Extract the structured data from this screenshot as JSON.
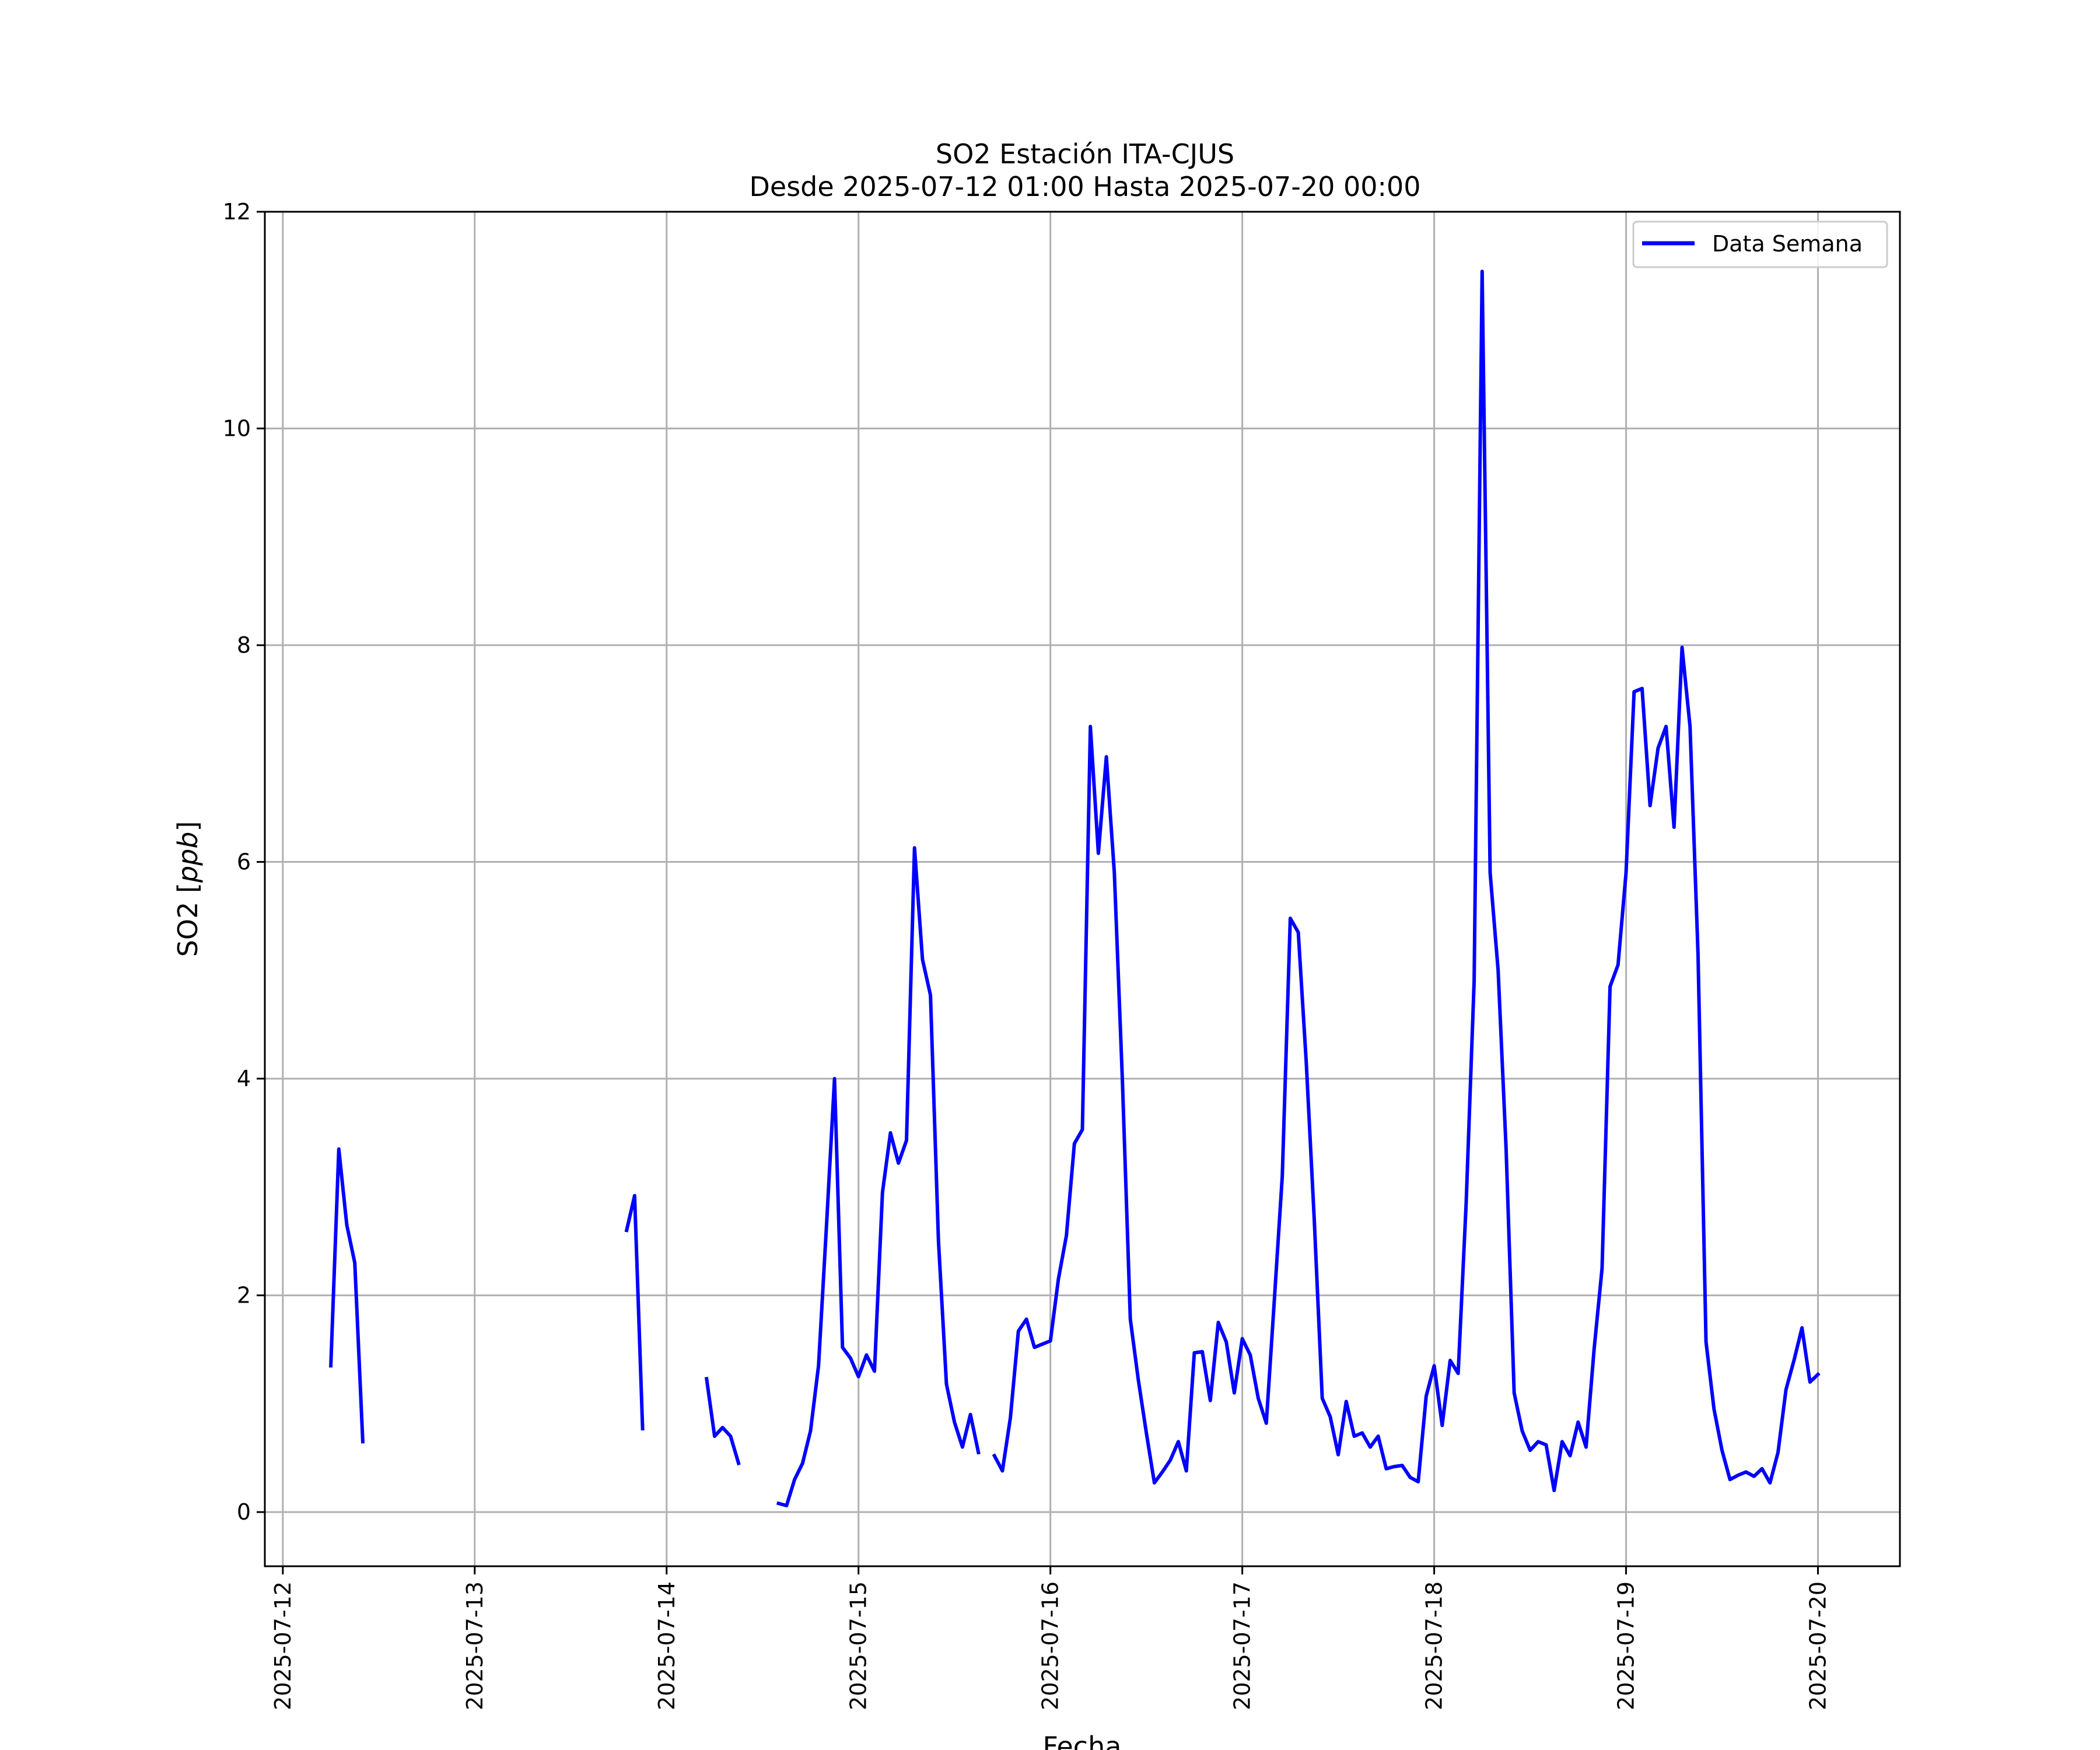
{
  "chart_data": {
    "type": "line",
    "title": "SO2 Estación ITA-CJUS",
    "subtitle": "Desde 2025-07-12 01:00 Hasta 2025-07-20 00:00",
    "xlabel": "Fecha",
    "ylabel": "SO2 [ppb]",
    "ylabel_parts": {
      "plain": "SO2 [",
      "italic": "ppb",
      "close": "]"
    },
    "xlim": [
      "2025-07-11 21:45",
      "2025-07-20 10:15"
    ],
    "ylim": [
      -0.5,
      12
    ],
    "x_ticks": [
      "2025-07-12",
      "2025-07-13",
      "2025-07-14",
      "2025-07-15",
      "2025-07-16",
      "2025-07-17",
      "2025-07-18",
      "2025-07-19",
      "2025-07-20"
    ],
    "y_ticks": [
      0,
      2,
      4,
      6,
      8,
      10,
      12
    ],
    "grid": true,
    "legend_position": "top-right",
    "colors": {
      "line": "#0000ff",
      "grid": "#b0b0b0"
    },
    "series": [
      {
        "name": "Data Semana",
        "segments": [
          [
            [
              "2025-07-12 06:00",
              1.35
            ],
            [
              "2025-07-12 07:00",
              3.35
            ],
            [
              "2025-07-12 08:00",
              2.65
            ],
            [
              "2025-07-12 09:00",
              2.3
            ],
            [
              "2025-07-12 10:00",
              0.65
            ]
          ],
          [
            [
              "2025-07-13 19:00",
              2.6
            ],
            [
              "2025-07-13 20:00",
              2.92
            ],
            [
              "2025-07-13 21:00",
              0.77
            ]
          ],
          [
            [
              "2025-07-14 05:00",
              1.23
            ],
            [
              "2025-07-14 06:00",
              0.7
            ],
            [
              "2025-07-14 07:00",
              0.78
            ],
            [
              "2025-07-14 08:00",
              0.7
            ],
            [
              "2025-07-14 09:00",
              0.45
            ]
          ],
          [
            [
              "2025-07-14 14:00",
              0.08
            ],
            [
              "2025-07-14 15:00",
              0.06
            ],
            [
              "2025-07-14 16:00",
              0.3
            ],
            [
              "2025-07-14 17:00",
              0.45
            ],
            [
              "2025-07-14 18:00",
              0.75
            ],
            [
              "2025-07-14 19:00",
              1.35
            ],
            [
              "2025-07-14 20:00",
              2.65
            ],
            [
              "2025-07-14 21:00",
              4.0
            ],
            [
              "2025-07-14 22:00",
              1.52
            ],
            [
              "2025-07-14 23:00",
              1.42
            ],
            [
              "2025-07-15 00:00",
              1.25
            ],
            [
              "2025-07-15 01:00",
              1.45
            ],
            [
              "2025-07-15 02:00",
              1.3
            ],
            [
              "2025-07-15 03:00",
              2.95
            ],
            [
              "2025-07-15 04:00",
              3.5
            ],
            [
              "2025-07-15 05:00",
              3.22
            ],
            [
              "2025-07-15 06:00",
              3.43
            ],
            [
              "2025-07-15 07:00",
              6.13
            ],
            [
              "2025-07-15 08:00",
              5.1
            ],
            [
              "2025-07-15 09:00",
              4.77
            ],
            [
              "2025-07-15 10:00",
              2.5
            ],
            [
              "2025-07-15 11:00",
              1.18
            ],
            [
              "2025-07-15 12:00",
              0.83
            ],
            [
              "2025-07-15 13:00",
              0.6
            ],
            [
              "2025-07-15 14:00",
              0.9
            ],
            [
              "2025-07-15 15:00",
              0.55
            ]
          ],
          [
            [
              "2025-07-15 17:00",
              0.52
            ],
            [
              "2025-07-15 18:00",
              0.38
            ],
            [
              "2025-07-15 19:00",
              0.87
            ],
            [
              "2025-07-15 20:00",
              1.67
            ],
            [
              "2025-07-15 21:00",
              1.78
            ],
            [
              "2025-07-15 22:00",
              1.52
            ],
            [
              "2025-07-15 23:00",
              1.55
            ],
            [
              "2025-07-16 00:00",
              1.58
            ],
            [
              "2025-07-16 01:00",
              2.15
            ],
            [
              "2025-07-16 02:00",
              2.55
            ],
            [
              "2025-07-16 03:00",
              3.4
            ],
            [
              "2025-07-16 04:00",
              3.53
            ],
            [
              "2025-07-16 05:00",
              7.25
            ],
            [
              "2025-07-16 06:00",
              6.08
            ],
            [
              "2025-07-16 07:00",
              6.97
            ],
            [
              "2025-07-16 08:00",
              5.9
            ],
            [
              "2025-07-16 09:00",
              4.0
            ],
            [
              "2025-07-16 10:00",
              1.78
            ],
            [
              "2025-07-16 11:00",
              1.22
            ],
            [
              "2025-07-16 12:00",
              0.73
            ],
            [
              "2025-07-16 13:00",
              0.27
            ],
            [
              "2025-07-16 14:00",
              0.37
            ],
            [
              "2025-07-16 15:00",
              0.48
            ],
            [
              "2025-07-16 16:00",
              0.65
            ],
            [
              "2025-07-16 17:00",
              0.38
            ],
            [
              "2025-07-16 18:00",
              1.47
            ],
            [
              "2025-07-16 19:00",
              1.48
            ],
            [
              "2025-07-16 20:00",
              1.03
            ],
            [
              "2025-07-16 21:00",
              1.75
            ],
            [
              "2025-07-16 22:00",
              1.57
            ],
            [
              "2025-07-16 23:00",
              1.1
            ],
            [
              "2025-07-17 00:00",
              1.6
            ],
            [
              "2025-07-17 01:00",
              1.45
            ],
            [
              "2025-07-17 02:00",
              1.05
            ],
            [
              "2025-07-17 03:00",
              0.82
            ],
            [
              "2025-07-17 04:00",
              1.95
            ],
            [
              "2025-07-17 05:00",
              3.1
            ],
            [
              "2025-07-17 06:00",
              5.48
            ],
            [
              "2025-07-17 07:00",
              5.35
            ],
            [
              "2025-07-17 08:00",
              4.15
            ],
            [
              "2025-07-17 09:00",
              2.7
            ],
            [
              "2025-07-17 10:00",
              1.05
            ],
            [
              "2025-07-17 11:00",
              0.88
            ],
            [
              "2025-07-17 12:00",
              0.53
            ],
            [
              "2025-07-17 13:00",
              1.02
            ],
            [
              "2025-07-17 14:00",
              0.7
            ],
            [
              "2025-07-17 15:00",
              0.73
            ],
            [
              "2025-07-17 16:00",
              0.6
            ],
            [
              "2025-07-17 17:00",
              0.7
            ],
            [
              "2025-07-17 18:00",
              0.4
            ],
            [
              "2025-07-17 19:00",
              0.42
            ],
            [
              "2025-07-17 20:00",
              0.43
            ],
            [
              "2025-07-17 21:00",
              0.32
            ],
            [
              "2025-07-17 22:00",
              0.28
            ],
            [
              "2025-07-17 23:00",
              1.07
            ],
            [
              "2025-07-18 00:00",
              1.35
            ],
            [
              "2025-07-18 01:00",
              0.8
            ],
            [
              "2025-07-18 02:00",
              1.4
            ],
            [
              "2025-07-18 03:00",
              1.28
            ],
            [
              "2025-07-18 04:00",
              2.85
            ],
            [
              "2025-07-18 05:00",
              4.9
            ],
            [
              "2025-07-18 06:00",
              11.45
            ],
            [
              "2025-07-18 07:00",
              5.9
            ],
            [
              "2025-07-18 08:00",
              5.0
            ],
            [
              "2025-07-18 09:00",
              3.35
            ],
            [
              "2025-07-18 10:00",
              1.1
            ],
            [
              "2025-07-18 11:00",
              0.75
            ],
            [
              "2025-07-18 12:00",
              0.57
            ],
            [
              "2025-07-18 13:00",
              0.65
            ],
            [
              "2025-07-18 14:00",
              0.62
            ],
            [
              "2025-07-18 15:00",
              0.2
            ],
            [
              "2025-07-18 16:00",
              0.65
            ],
            [
              "2025-07-18 17:00",
              0.52
            ],
            [
              "2025-07-18 18:00",
              0.83
            ],
            [
              "2025-07-18 19:00",
              0.6
            ],
            [
              "2025-07-18 20:00",
              1.5
            ],
            [
              "2025-07-18 21:00",
              2.25
            ],
            [
              "2025-07-18 22:00",
              4.85
            ],
            [
              "2025-07-18 23:00",
              5.05
            ],
            [
              "2025-07-19 00:00",
              5.9
            ],
            [
              "2025-07-19 01:00",
              7.57
            ],
            [
              "2025-07-19 02:00",
              7.6
            ],
            [
              "2025-07-19 03:00",
              6.52
            ],
            [
              "2025-07-19 04:00",
              7.05
            ],
            [
              "2025-07-19 05:00",
              7.25
            ],
            [
              "2025-07-19 06:00",
              6.32
            ],
            [
              "2025-07-19 07:00",
              7.98
            ],
            [
              "2025-07-19 08:00",
              7.25
            ],
            [
              "2025-07-19 09:00",
              5.15
            ],
            [
              "2025-07-19 10:00",
              1.57
            ],
            [
              "2025-07-19 11:00",
              0.95
            ],
            [
              "2025-07-19 12:00",
              0.57
            ],
            [
              "2025-07-19 13:00",
              0.3
            ],
            [
              "2025-07-19 14:00",
              0.34
            ],
            [
              "2025-07-19 15:00",
              0.37
            ],
            [
              "2025-07-19 16:00",
              0.33
            ],
            [
              "2025-07-19 17:00",
              0.4
            ],
            [
              "2025-07-19 18:00",
              0.27
            ],
            [
              "2025-07-19 19:00",
              0.55
            ],
            [
              "2025-07-19 20:00",
              1.13
            ],
            [
              "2025-07-19 21:00",
              1.4
            ],
            [
              "2025-07-19 22:00",
              1.7
            ],
            [
              "2025-07-19 23:00",
              1.2
            ],
            [
              "2025-07-20 00:00",
              1.27
            ]
          ]
        ]
      }
    ]
  }
}
